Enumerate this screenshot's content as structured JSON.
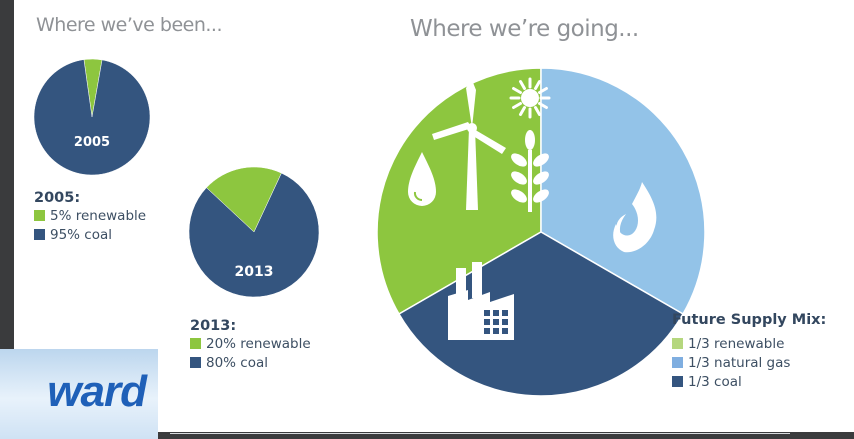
{
  "headings": {
    "left": "Where we’ve been...",
    "right": "Where we’re going..."
  },
  "logo_text": "ward",
  "colors": {
    "renewable": "#8dc63f",
    "coal": "#34557f",
    "natural_gas": "#93c3e8",
    "icon": "#ffffff"
  },
  "chart_data": [
    {
      "type": "pie",
      "center_label": "2005",
      "legend_title": "2005:",
      "slices": [
        {
          "label": "5% renewable",
          "value": 5,
          "color": "#8dc63f"
        },
        {
          "label": "95% coal",
          "value": 95,
          "color": "#34557f"
        }
      ]
    },
    {
      "type": "pie",
      "center_label": "2013",
      "legend_title": "2013:",
      "slices": [
        {
          "label": "20% renewable",
          "value": 20,
          "color": "#8dc63f"
        },
        {
          "label": "80% coal",
          "value": 80,
          "color": "#34557f"
        }
      ]
    },
    {
      "type": "pie",
      "center_label": "",
      "legend_title": "Future Supply Mix:",
      "slices": [
        {
          "label": "1/3 renewable",
          "value": 33.333,
          "color": "#8dc63f",
          "icons": [
            "water-drop-icon",
            "wind-turbine-icon",
            "sun-icon",
            "plant-icon"
          ]
        },
        {
          "label": "1/3 natural gas",
          "value": 33.333,
          "color": "#93c3e8",
          "icons": [
            "flame-icon"
          ]
        },
        {
          "label": "1/3 coal",
          "value": 33.333,
          "color": "#34557f",
          "icons": [
            "factory-icon"
          ]
        }
      ]
    }
  ]
}
